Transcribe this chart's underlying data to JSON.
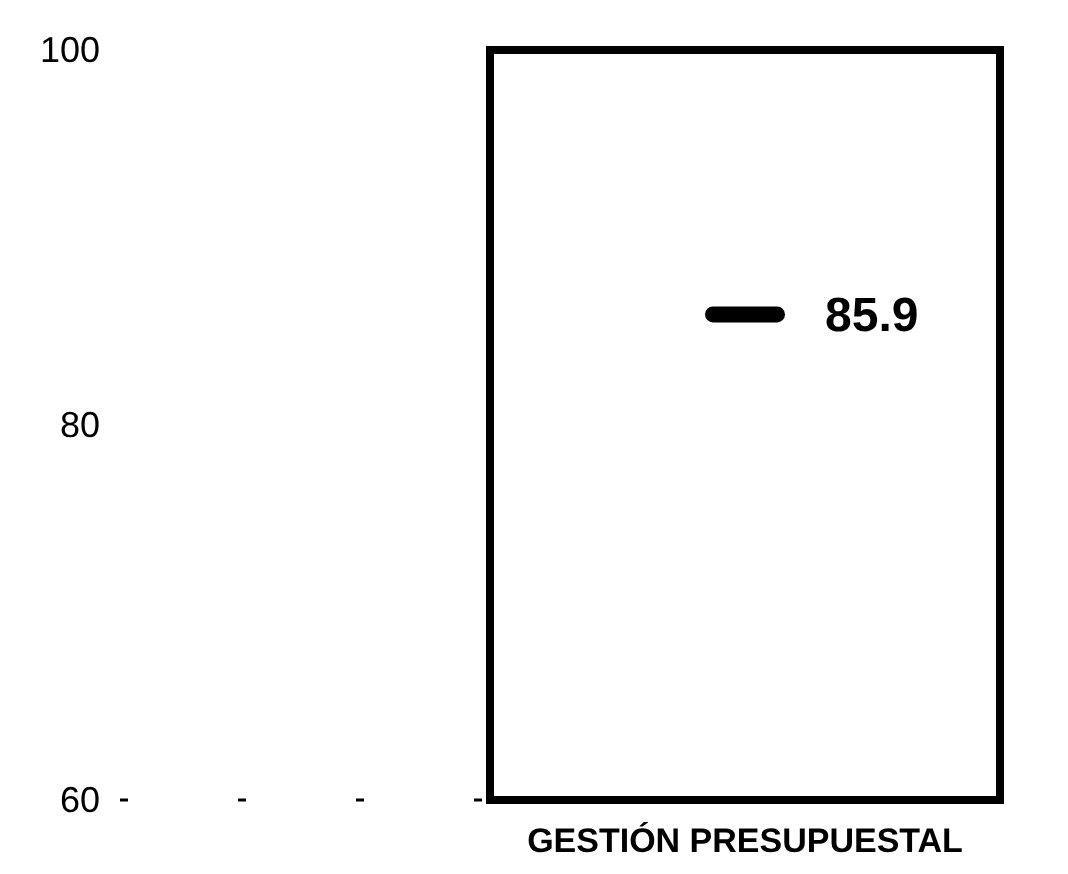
{
  "chart_data": {
    "type": "bar",
    "categories": [
      "GESTIÓN PRESUPUESTAL"
    ],
    "ylim": [
      60,
      100
    ],
    "yticks": [
      60,
      80,
      100
    ],
    "series": [
      {
        "color": "#ffffff",
        "values": [
          100
        ]
      }
    ],
    "ref_lines": [
      {
        "axis": "y",
        "value": 85.9,
        "label": "85.9",
        "color": "#000000"
      }
    ]
  }
}
